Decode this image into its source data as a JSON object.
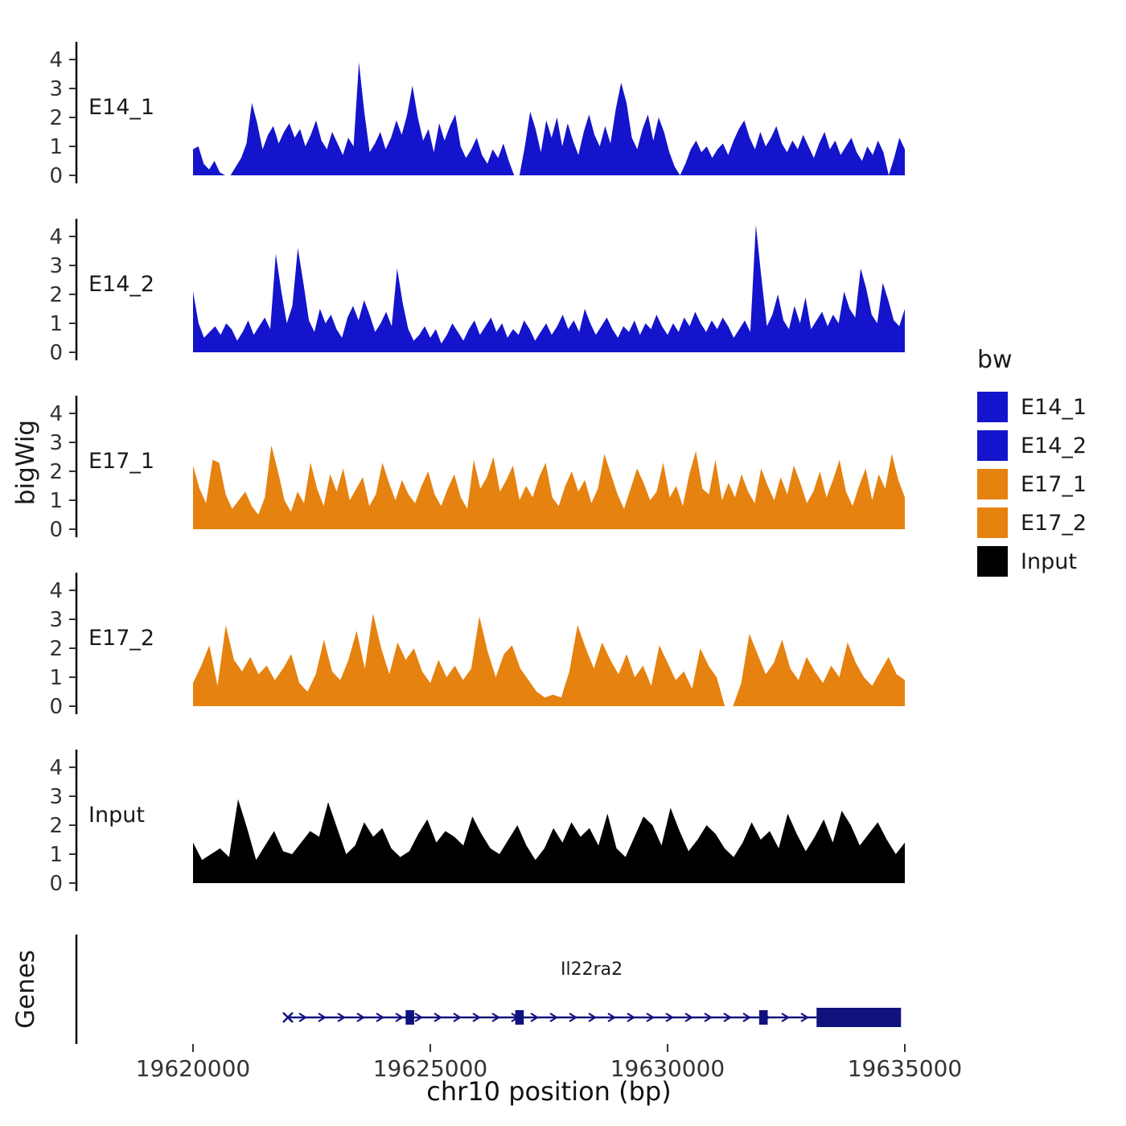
{
  "figure": {
    "ylab_left": "bigWig",
    "genes_label": "Genes",
    "xlab": "chr10 position (bp)"
  },
  "axes": {
    "x": {
      "min": 19620000,
      "max": 19635000,
      "ticks": [
        19620000,
        19625000,
        19630000,
        19635000
      ],
      "tick_labels": [
        "19620000",
        "19625000",
        "19630000",
        "19635000"
      ]
    },
    "y": {
      "min": 0,
      "max": 4.5,
      "ticks": [
        0,
        1,
        2,
        3,
        4
      ]
    }
  },
  "legend": {
    "title": "bw",
    "entries": [
      {
        "label": "E14_1",
        "color": "#1414cc"
      },
      {
        "label": "E14_2",
        "color": "#1414cc"
      },
      {
        "label": "E17_1",
        "color": "#e6820f"
      },
      {
        "label": "E17_2",
        "color": "#e6820f"
      },
      {
        "label": "Input",
        "color": "#000000"
      }
    ]
  },
  "gene_track": {
    "gene_name": "Il22ra2",
    "color": "#12127e",
    "start_bp": 19622000,
    "end_bp": 19634920,
    "label_bp": 19628400,
    "exons": [
      {
        "start": 19624480,
        "end": 19624660
      },
      {
        "start": 19626790,
        "end": 19626970
      },
      {
        "start": 19631930,
        "end": 19632110
      }
    ],
    "thick_exon": {
      "start": 19633140,
      "end": 19634920
    }
  },
  "chart_data": {
    "type": "area",
    "title": "",
    "xlabel": "chr10 position (bp)",
    "ylabel": "bigWig",
    "x_bp_range": [
      19620000,
      19635000
    ],
    "y_range": [
      0,
      4.5
    ],
    "grid": false,
    "legend_position": "right",
    "tracks": [
      {
        "name": "E14_1",
        "color": "#1414cc",
        "values": [
          0.9,
          1.0,
          0.4,
          0.2,
          0.5,
          0.1,
          0,
          0,
          0.3,
          0.6,
          1.1,
          2.5,
          1.8,
          0.9,
          1.4,
          1.7,
          1.1,
          1.5,
          1.8,
          1.3,
          1.6,
          1.0,
          1.4,
          1.9,
          1.2,
          0.9,
          1.5,
          1.1,
          0.7,
          1.3,
          1.0,
          3.9,
          2.2,
          0.8,
          1.1,
          1.5,
          0.9,
          1.3,
          1.9,
          1.4,
          2.1,
          3.1,
          2.0,
          1.2,
          1.6,
          0.8,
          1.8,
          1.2,
          1.7,
          2.1,
          1.0,
          0.6,
          0.9,
          1.3,
          0.7,
          0.4,
          0.9,
          0.6,
          1.1,
          0.5,
          0,
          0,
          1.0,
          2.2,
          1.6,
          0.8,
          1.9,
          1.3,
          2.0,
          1.0,
          1.8,
          1.2,
          0.7,
          1.5,
          2.1,
          1.4,
          1.0,
          1.7,
          1.1,
          2.3,
          3.2,
          2.5,
          1.3,
          0.9,
          1.6,
          2.1,
          1.2,
          2.0,
          1.5,
          0.8,
          0.3,
          0,
          0.4,
          0.9,
          1.2,
          0.8,
          1.0,
          0.6,
          0.9,
          1.1,
          0.7,
          1.2,
          1.6,
          1.9,
          1.3,
          0.9,
          1.5,
          1.0,
          1.3,
          1.7,
          1.1,
          0.8,
          1.2,
          0.9,
          1.4,
          1.0,
          0.6,
          1.1,
          1.5,
          0.9,
          1.2,
          0.7,
          1.0,
          1.3,
          0.8,
          0.5,
          1.0,
          0.7,
          1.2,
          0.8,
          0,
          0.6,
          1.3,
          0.9
        ]
      },
      {
        "name": "E14_2",
        "color": "#1414cc",
        "values": [
          2.1,
          1.0,
          0.5,
          0.7,
          0.9,
          0.6,
          1.0,
          0.8,
          0.4,
          0.7,
          1.1,
          0.6,
          0.9,
          1.2,
          0.8,
          3.4,
          2.1,
          1.0,
          1.6,
          3.6,
          2.4,
          1.1,
          0.7,
          1.5,
          1.0,
          1.3,
          0.8,
          0.5,
          1.2,
          1.6,
          1.1,
          1.8,
          1.3,
          0.7,
          1.0,
          1.4,
          0.9,
          2.9,
          1.7,
          0.8,
          0.4,
          0.6,
          0.9,
          0.5,
          0.8,
          0.3,
          0.6,
          1.0,
          0.7,
          0.4,
          0.8,
          1.1,
          0.6,
          0.9,
          1.2,
          0.7,
          1.0,
          0.5,
          0.8,
          0.6,
          1.1,
          0.8,
          0.4,
          0.7,
          1.0,
          0.6,
          0.9,
          1.3,
          0.8,
          1.1,
          0.7,
          1.5,
          1.0,
          0.6,
          0.9,
          1.2,
          0.8,
          0.5,
          0.9,
          0.7,
          1.1,
          0.6,
          1.0,
          0.8,
          1.3,
          0.9,
          0.6,
          1.0,
          0.7,
          1.2,
          0.9,
          1.4,
          1.0,
          0.7,
          1.1,
          0.8,
          1.2,
          0.9,
          0.5,
          0.8,
          1.1,
          0.7,
          4.4,
          2.6,
          0.9,
          1.3,
          2.0,
          1.1,
          0.8,
          1.6,
          1.0,
          1.9,
          0.8,
          1.1,
          1.4,
          0.9,
          1.3,
          1.0,
          2.1,
          1.5,
          1.2,
          2.9,
          2.2,
          1.3,
          1.0,
          2.4,
          1.8,
          1.1,
          0.9,
          1.5
        ]
      },
      {
        "name": "E17_1",
        "color": "#e6820f",
        "values": [
          2.2,
          1.4,
          0.9,
          2.4,
          2.3,
          1.2,
          0.7,
          1.0,
          1.3,
          0.8,
          0.5,
          1.1,
          2.9,
          2.0,
          1.0,
          0.6,
          1.3,
          0.9,
          2.3,
          1.4,
          0.8,
          1.9,
          1.3,
          2.1,
          1.0,
          1.4,
          1.8,
          0.8,
          1.2,
          2.3,
          1.6,
          1.0,
          1.7,
          1.2,
          0.9,
          1.5,
          2.0,
          1.2,
          0.8,
          1.4,
          1.9,
          1.1,
          0.7,
          2.4,
          1.4,
          1.8,
          2.5,
          1.3,
          1.7,
          2.2,
          1.0,
          1.5,
          1.1,
          1.8,
          2.3,
          1.1,
          0.8,
          1.5,
          2.0,
          1.3,
          1.7,
          0.9,
          1.4,
          2.6,
          1.9,
          1.2,
          0.7,
          1.4,
          2.1,
          1.6,
          1.0,
          1.3,
          2.3,
          1.1,
          1.5,
          0.8,
          1.9,
          2.7,
          1.4,
          1.2,
          2.4,
          1.0,
          1.6,
          1.1,
          1.9,
          1.3,
          0.9,
          2.1,
          1.5,
          1.0,
          1.8,
          1.2,
          2.2,
          1.6,
          0.9,
          1.3,
          2.0,
          1.1,
          1.7,
          2.4,
          1.3,
          0.8,
          1.5,
          2.1,
          1.0,
          1.9,
          1.4,
          2.6,
          1.7,
          1.1
        ]
      },
      {
        "name": "E17_2",
        "color": "#e6820f",
        "values": [
          0.8,
          1.4,
          2.1,
          0.7,
          2.8,
          1.6,
          1.2,
          1.7,
          1.1,
          1.4,
          0.9,
          1.3,
          1.8,
          0.8,
          0.5,
          1.1,
          2.3,
          1.2,
          0.9,
          1.6,
          2.6,
          1.3,
          3.2,
          2.0,
          1.1,
          2.2,
          1.6,
          2.0,
          1.2,
          0.8,
          1.6,
          1.0,
          1.4,
          0.9,
          1.3,
          3.1,
          1.9,
          1.0,
          1.8,
          2.1,
          1.3,
          0.9,
          0.5,
          0.3,
          0.4,
          0.3,
          1.2,
          2.8,
          2.0,
          1.3,
          2.2,
          1.6,
          1.1,
          1.8,
          1.0,
          1.4,
          0.7,
          2.1,
          1.5,
          0.9,
          1.2,
          0.6,
          2.0,
          1.4,
          1.0,
          0,
          0,
          0.8,
          2.5,
          1.8,
          1.1,
          1.5,
          2.3,
          1.3,
          0.9,
          1.7,
          1.2,
          0.8,
          1.4,
          1.0,
          2.2,
          1.5,
          1.0,
          0.7,
          1.2,
          1.7,
          1.1,
          0.9
        ]
      },
      {
        "name": "Input",
        "color": "#000000",
        "values": [
          1.4,
          0.8,
          1.0,
          1.2,
          0.9,
          2.9,
          1.9,
          0.8,
          1.3,
          1.8,
          1.1,
          1.0,
          1.4,
          1.8,
          1.6,
          2.8,
          1.9,
          1.0,
          1.3,
          2.1,
          1.6,
          1.9,
          1.2,
          0.9,
          1.1,
          1.7,
          2.2,
          1.4,
          1.8,
          1.6,
          1.3,
          2.3,
          1.7,
          1.2,
          1.0,
          1.5,
          2.0,
          1.3,
          0.8,
          1.2,
          1.9,
          1.4,
          2.1,
          1.6,
          1.9,
          1.3,
          2.4,
          1.2,
          0.9,
          1.6,
          2.3,
          2.0,
          1.3,
          2.6,
          1.8,
          1.1,
          1.5,
          2.0,
          1.7,
          1.2,
          0.9,
          1.4,
          2.1,
          1.5,
          1.8,
          1.2,
          2.4,
          1.7,
          1.1,
          1.6,
          2.2,
          1.4,
          2.5,
          2.0,
          1.3,
          1.7,
          2.1,
          1.5,
          1.0,
          1.4
        ]
      }
    ]
  }
}
